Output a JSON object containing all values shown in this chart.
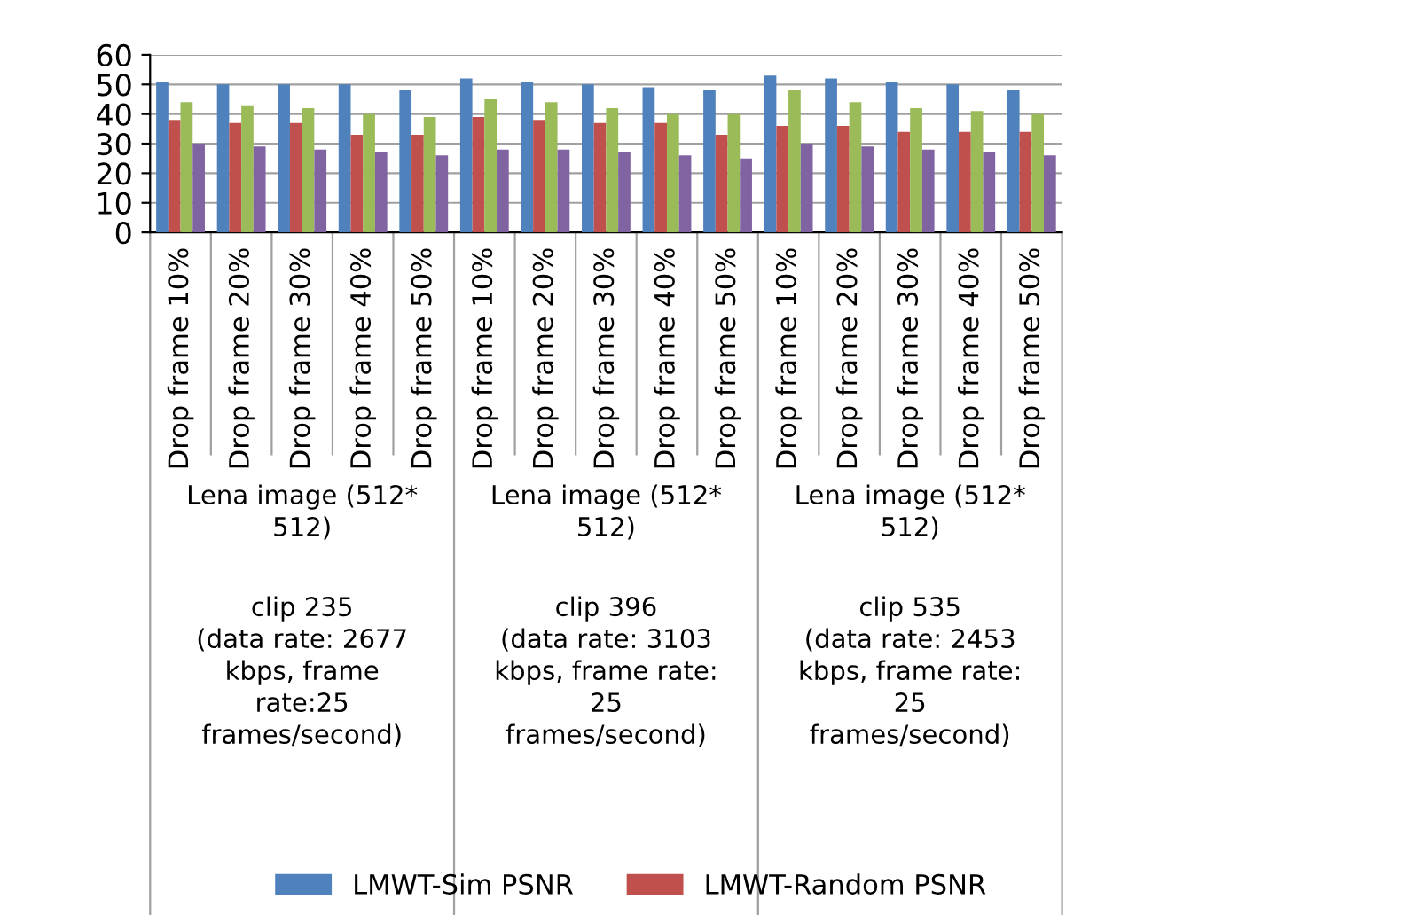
{
  "chart_data": {
    "type": "bar",
    "categories": [
      "Drop frame 10%",
      "Drop frame 20%",
      "Drop frame 30%",
      "Drop frame 40%",
      "Drop frame 50%",
      "Drop frame 10%",
      "Drop frame 20%",
      "Drop frame 30%",
      "Drop frame 40%",
      "Drop frame 50%",
      "Drop frame 10%",
      "Drop frame 20%",
      "Drop frame 30%",
      "Drop frame 40%",
      "Drop frame 50%"
    ],
    "series": [
      {
        "name": "LMWT-Sim PSNR",
        "color": "#4f81bd",
        "values": [
          51,
          50,
          50,
          50,
          48,
          52,
          51,
          50,
          49,
          48,
          53,
          52,
          51,
          50,
          48
        ]
      },
      {
        "name": "LMWT-Random PSNR",
        "color": "#c0504d",
        "values": [
          38,
          37,
          37,
          33,
          33,
          39,
          38,
          37,
          37,
          33,
          36,
          36,
          34,
          34,
          34
        ]
      },
      {
        "color": "#9bbb59",
        "values": [
          44,
          43,
          42,
          40,
          39,
          45,
          44,
          42,
          40,
          40,
          48,
          44,
          42,
          41,
          40
        ]
      },
      {
        "color": "#8064a2",
        "values": [
          30,
          29,
          28,
          27,
          26,
          28,
          28,
          27,
          26,
          25,
          30,
          29,
          28,
          27,
          26
        ]
      }
    ],
    "annotations": [
      "Lena image (512*\n512)",
      "Lena image (512*\n512)",
      "Lena image (512*\n512)",
      "clip 235\n(data rate: 2677\nkbps, frame\nrate:25\nframes/second)",
      "clip 396\n(data rate: 3103\nkbps, frame rate:\n25\nframes/second)",
      "clip 535\n(data rate: 2453\nkbps, frame rate:\n25\nframes/second)"
    ],
    "ylim": [
      0,
      60
    ],
    "yticks": [
      0,
      10,
      20,
      30,
      40,
      50,
      60
    ],
    "grid": "y",
    "legend": "bottom"
  }
}
